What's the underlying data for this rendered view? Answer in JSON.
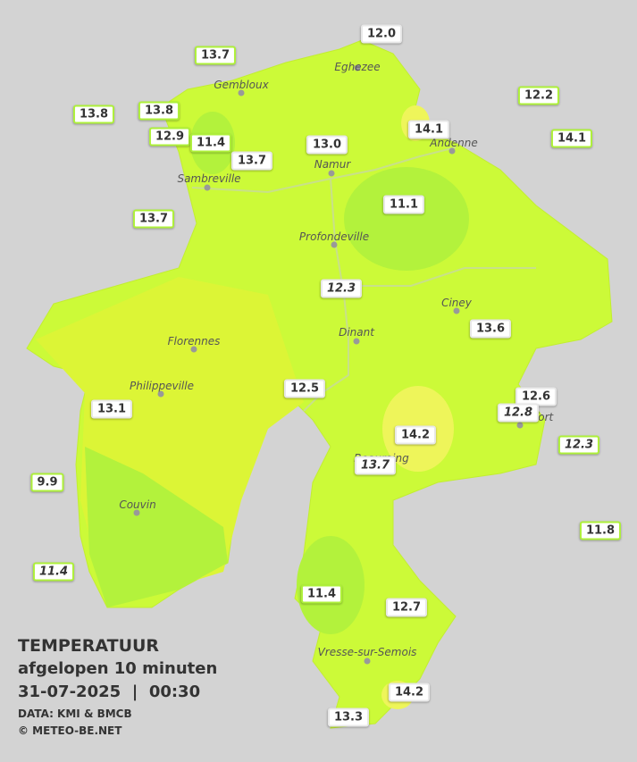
{
  "title": {
    "heading": "TEMPERATUUR",
    "period": "afgelopen 10 minuten",
    "date": "31-07-2025",
    "separator": "|",
    "time": "00:30",
    "source": "DATA: KMI & BMCB",
    "copyright": "© METEO-BE.NET"
  },
  "cities": [
    "Eghezee",
    "Gembloux",
    "Andenne",
    "Namur",
    "Sambreville",
    "Profondeville",
    "Ciney",
    "Dinant",
    "Florennes",
    "Philippeville",
    "Rochefort",
    "Beauraing",
    "Couvin",
    "Vresse-sur-Semois"
  ],
  "stations": [
    "12.0",
    "13.7",
    "12.2",
    "13.8",
    "13.8",
    "12.9",
    "11.4",
    "14.1",
    "14.1",
    "13.0",
    "13.7",
    "11.1",
    "13.7",
    "12.3",
    "13.6",
    "12.5",
    "12.6",
    "12.8",
    "13.1",
    "14.2",
    "12.3",
    "13.7",
    "9.9",
    "11.8",
    "11.4",
    "11.4",
    "12.7",
    "14.2",
    "13.3"
  ]
}
